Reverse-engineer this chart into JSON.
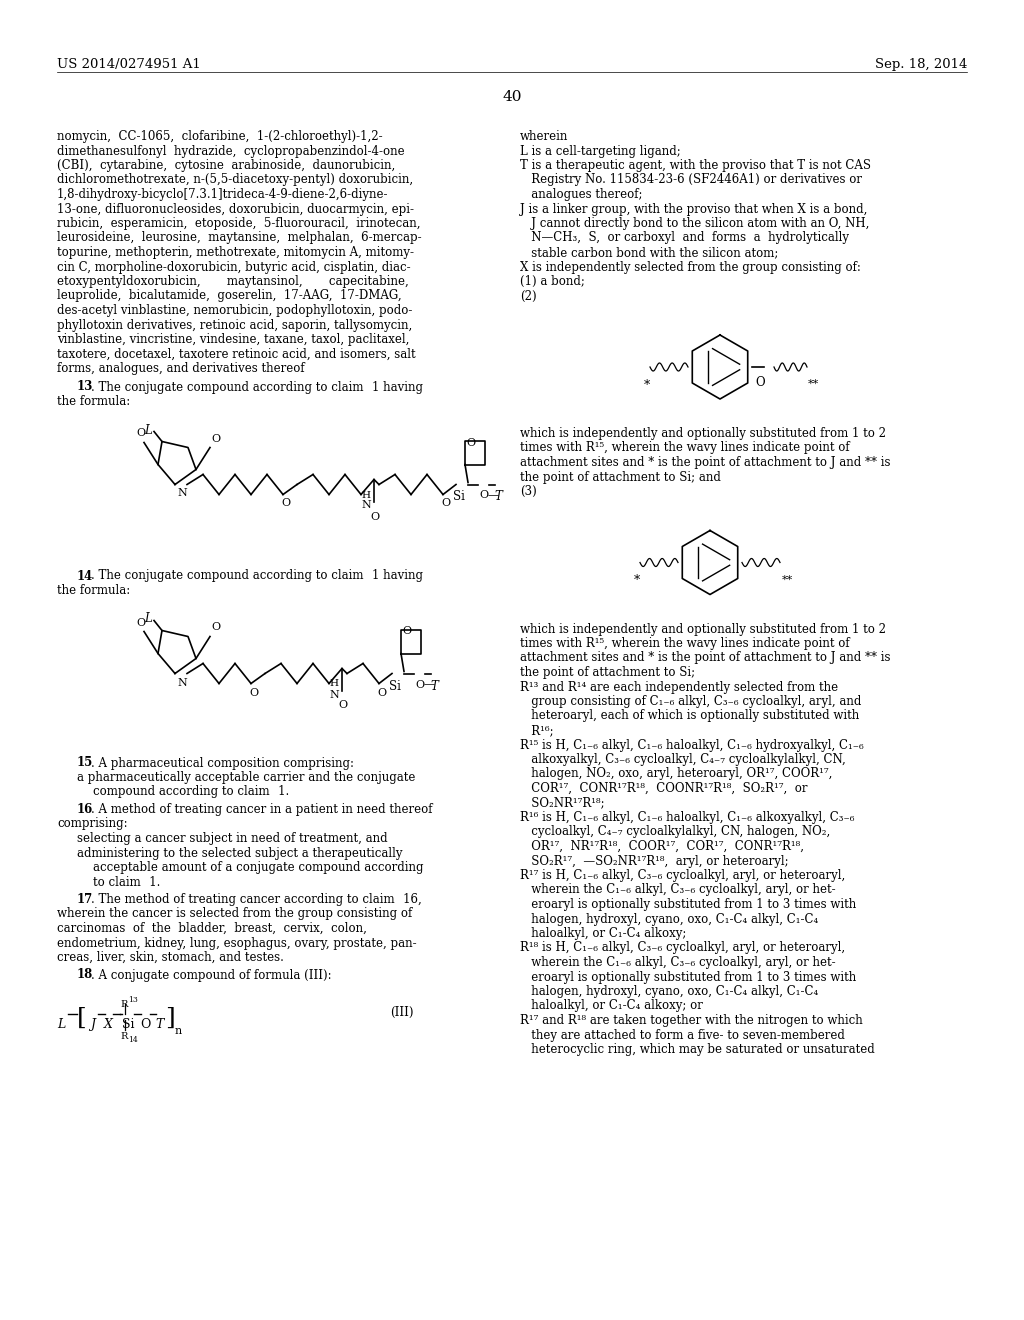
{
  "bg_color": "#ffffff",
  "header_left": "US 2014/0274951 A1",
  "header_right": "Sep. 18, 2014",
  "page_number": "40"
}
